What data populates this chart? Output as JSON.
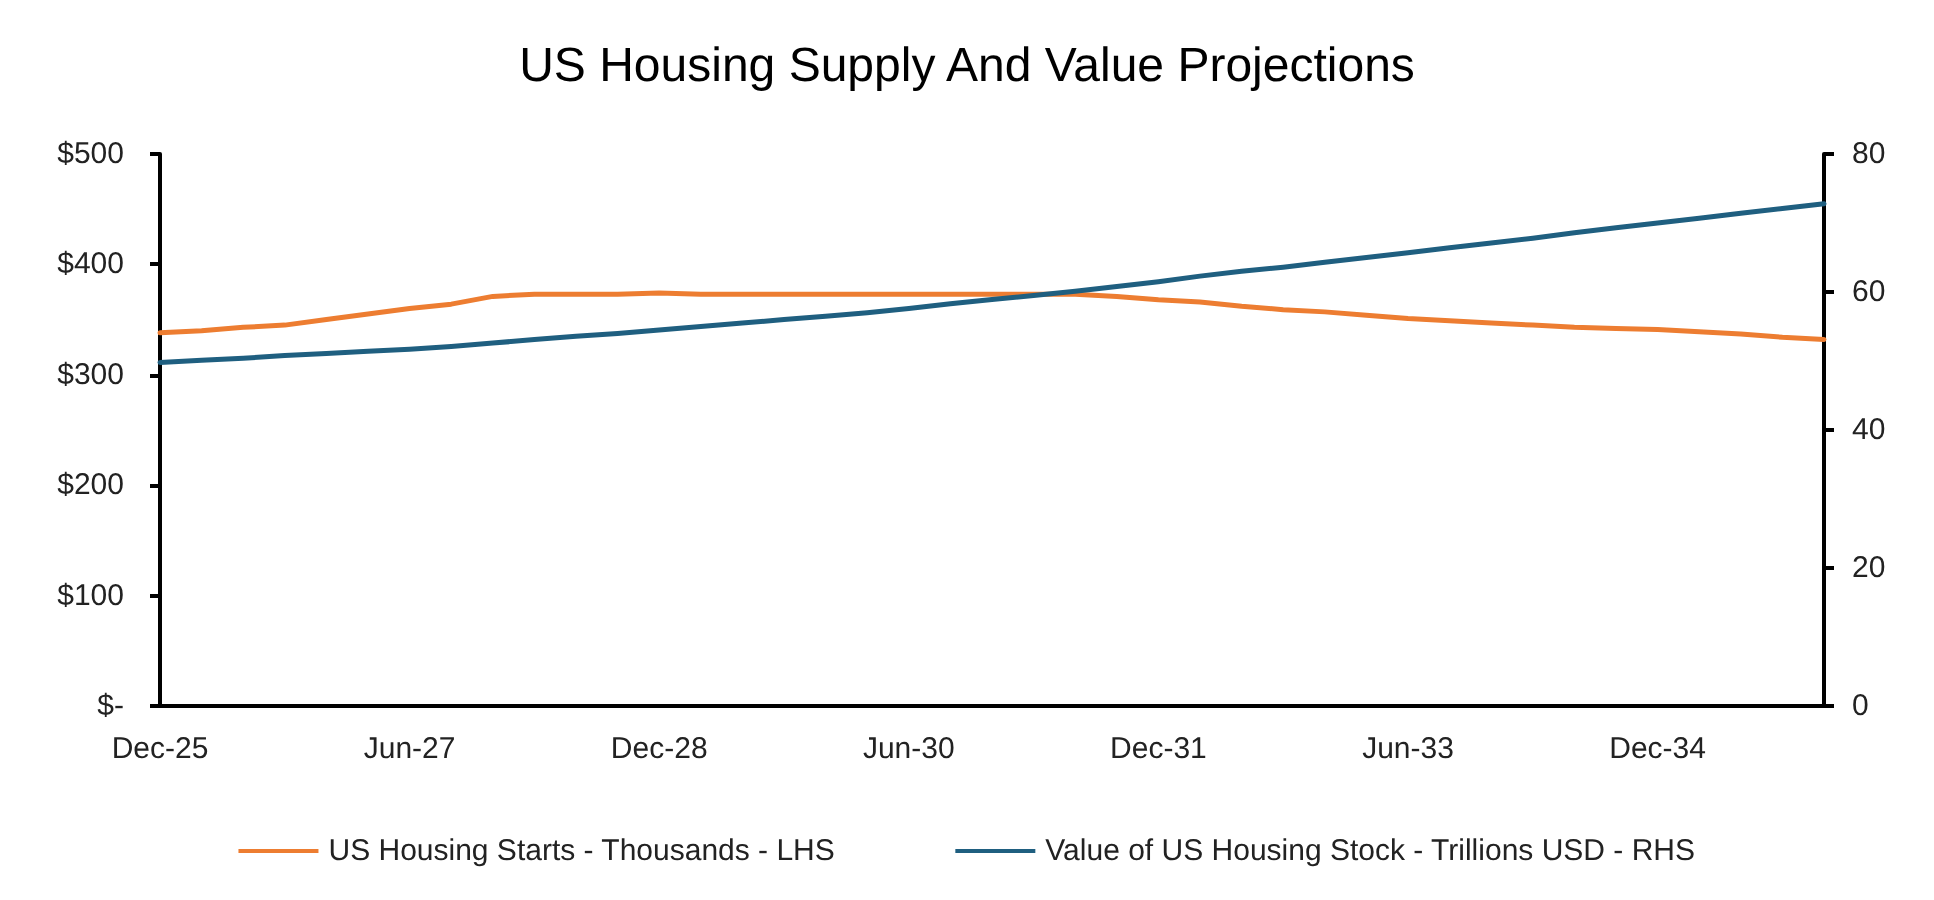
{
  "chart_data": {
    "type": "line",
    "title": "US Housing Supply And Value Projections",
    "categories": [
      "Dec-25",
      null,
      null,
      null,
      null,
      null,
      "Jun-27",
      null,
      null,
      null,
      null,
      null,
      "Dec-28",
      null,
      null,
      null,
      null,
      null,
      "Jun-30",
      null,
      null,
      null,
      null,
      null,
      "Dec-31",
      null,
      null,
      null,
      null,
      null,
      "Jun-33",
      null,
      null,
      null,
      null,
      null,
      "Dec-34",
      null,
      null,
      null,
      null
    ],
    "series": [
      {
        "name": "US Housing Starts - Thousands - LHS",
        "color": "#ed7d31",
        "values": [
          338,
          340,
          343,
          345,
          350,
          355,
          360,
          364,
          371,
          373,
          373,
          373,
          374,
          373,
          373,
          373,
          373,
          373,
          373,
          373,
          373,
          373,
          373,
          371,
          368,
          366,
          362,
          359,
          357,
          354,
          351,
          349,
          347,
          345,
          343,
          342,
          341,
          339,
          337,
          334,
          332
        ]
      },
      {
        "name": "Value of US Housing Stock - Trillions USD - RHS",
        "color": "#1f5f80",
        "axis": "y2",
        "values": [
          49.8,
          50.1,
          50.4,
          50.8,
          51.1,
          51.4,
          51.7,
          52.1,
          52.6,
          53.1,
          53.6,
          54.0,
          54.5,
          55.0,
          55.5,
          56.0,
          56.5,
          57.0,
          57.6,
          58.3,
          58.9,
          59.5,
          60.1,
          60.8,
          61.5,
          62.3,
          63.0,
          63.6,
          64.3,
          65.0,
          65.7,
          66.4,
          67.1,
          67.8,
          68.6,
          69.3,
          70.0,
          70.7,
          71.4,
          72.1,
          72.8
        ]
      }
    ],
    "ylim": [
      0,
      500
    ],
    "yticks": [
      {
        "value": 0,
        "label": "$-"
      },
      {
        "value": 100,
        "label": "$100"
      },
      {
        "value": 200,
        "label": "$200"
      },
      {
        "value": 300,
        "label": "$300"
      },
      {
        "value": 400,
        "label": "$400"
      },
      {
        "value": 500,
        "label": "$500"
      }
    ],
    "y2lim": [
      0,
      80
    ],
    "y2ticks": [
      0,
      20,
      40,
      60,
      80
    ],
    "grid": false,
    "legend": "bottom",
    "marker": "none",
    "line_style": "solid"
  }
}
